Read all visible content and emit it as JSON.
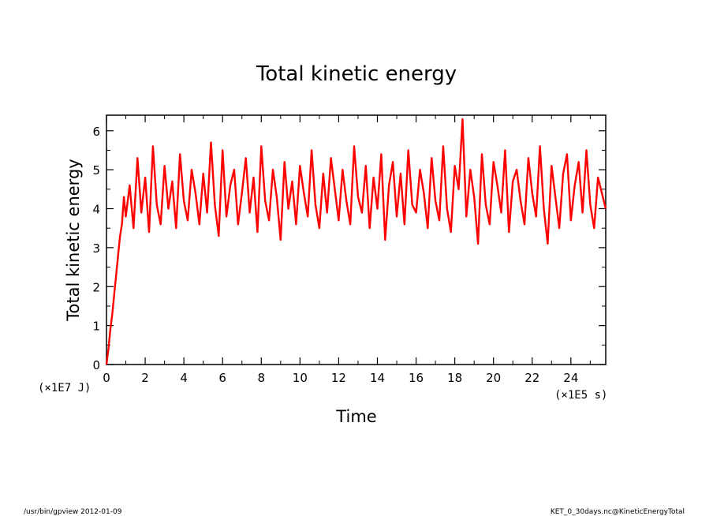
{
  "chart_data": {
    "type": "line",
    "title": "Total kinetic energy",
    "xlabel": "Time",
    "ylabel": "Total kinetic energy",
    "x_unit": "(×1E5 s)",
    "y_unit": "(×1E7 J)",
    "xlim": [
      0,
      25.8
    ],
    "ylim": [
      0,
      6.4
    ],
    "x_ticks": [
      0,
      2,
      4,
      6,
      8,
      10,
      12,
      14,
      16,
      18,
      20,
      22,
      24
    ],
    "y_ticks": [
      0,
      1,
      2,
      3,
      4,
      5,
      6
    ],
    "grid": false,
    "series": [
      {
        "color": "#ff0000",
        "x": [
          0,
          0.1,
          0.2,
          0.3,
          0.4,
          0.5,
          0.6,
          0.7,
          0.8,
          0.9,
          1.0,
          1.2,
          1.4,
          1.6,
          1.8,
          2.0,
          2.2,
          2.4,
          2.6,
          2.8,
          3.0,
          3.2,
          3.4,
          3.6,
          3.8,
          4.0,
          4.2,
          4.4,
          4.6,
          4.8,
          5.0,
          5.2,
          5.4,
          5.6,
          5.8,
          6.0,
          6.2,
          6.4,
          6.6,
          6.8,
          7.0,
          7.2,
          7.4,
          7.6,
          7.8,
          8.0,
          8.2,
          8.4,
          8.6,
          8.8,
          9.0,
          9.2,
          9.4,
          9.6,
          9.8,
          10.0,
          10.2,
          10.4,
          10.6,
          10.8,
          11.0,
          11.2,
          11.4,
          11.6,
          11.8,
          12.0,
          12.2,
          12.4,
          12.6,
          12.8,
          13.0,
          13.2,
          13.4,
          13.6,
          13.8,
          14.0,
          14.2,
          14.4,
          14.6,
          14.8,
          15.0,
          15.2,
          15.4,
          15.6,
          15.8,
          16.0,
          16.2,
          16.4,
          16.6,
          16.8,
          17.0,
          17.2,
          17.4,
          17.6,
          17.8,
          18.0,
          18.2,
          18.4,
          18.6,
          18.8,
          19.0,
          19.2,
          19.4,
          19.6,
          19.8,
          20.0,
          20.2,
          20.4,
          20.6,
          20.8,
          21.0,
          21.2,
          21.4,
          21.6,
          21.8,
          22.0,
          22.2,
          22.4,
          22.6,
          22.8,
          23.0,
          23.2,
          23.4,
          23.6,
          23.8,
          24.0,
          24.2,
          24.4,
          24.6,
          24.8,
          25.0,
          25.2,
          25.4,
          25.6,
          25.8
        ],
        "y": [
          0.0,
          0.4,
          0.9,
          1.3,
          1.8,
          2.3,
          2.8,
          3.3,
          3.6,
          4.3,
          3.8,
          4.6,
          3.5,
          5.3,
          3.9,
          4.8,
          3.4,
          5.6,
          4.1,
          3.6,
          5.1,
          4.0,
          4.7,
          3.5,
          5.4,
          4.2,
          3.7,
          5.0,
          4.4,
          3.6,
          4.9,
          3.9,
          5.7,
          4.1,
          3.3,
          5.5,
          3.8,
          4.6,
          5.0,
          3.6,
          4.4,
          5.3,
          3.9,
          4.8,
          3.4,
          5.6,
          4.2,
          3.7,
          5.0,
          4.3,
          3.2,
          5.2,
          4.0,
          4.7,
          3.6,
          5.1,
          4.4,
          3.8,
          5.5,
          4.1,
          3.5,
          4.9,
          3.9,
          5.3,
          4.5,
          3.7,
          5.0,
          4.2,
          3.6,
          5.6,
          4.3,
          3.9,
          5.1,
          3.5,
          4.8,
          4.0,
          5.4,
          3.2,
          4.6,
          5.2,
          3.8,
          4.9,
          3.6,
          5.5,
          4.1,
          3.9,
          5.0,
          4.4,
          3.5,
          5.3,
          4.2,
          3.7,
          5.6,
          4.0,
          3.4,
          5.1,
          4.5,
          6.3,
          3.8,
          5.0,
          4.3,
          3.1,
          5.4,
          4.1,
          3.6,
          5.2,
          4.6,
          3.9,
          5.5,
          3.4,
          4.7,
          5.0,
          4.2,
          3.6,
          5.3,
          4.4,
          3.8,
          5.6,
          4.0,
          3.1,
          5.1,
          4.3,
          3.5,
          4.9,
          5.4,
          3.7,
          4.6,
          5.2,
          3.9,
          5.5,
          4.1,
          3.5,
          4.8,
          4.4,
          4.0
        ]
      }
    ]
  },
  "footer": {
    "left": "/usr/bin/gpview  2012-01-09",
    "right": "KET_0_30days.nc@KineticEnergyTotal"
  }
}
